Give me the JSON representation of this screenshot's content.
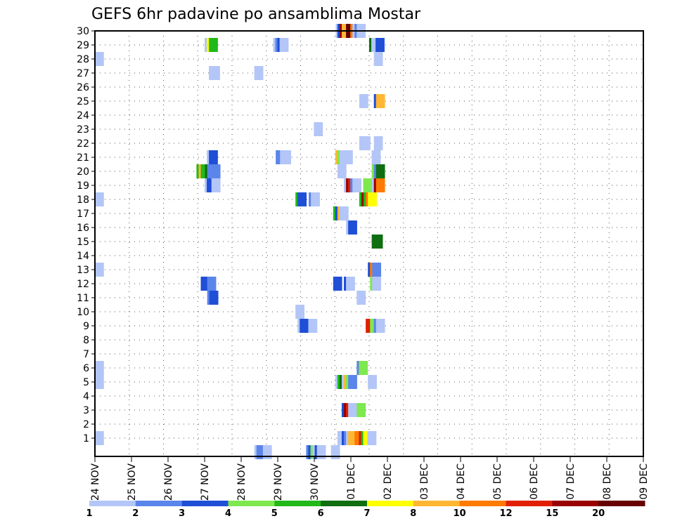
{
  "chart_data": {
    "type": "heatmap",
    "title": "GEFS 6hr padavine po ansamblima Mostar",
    "x_tick_labels": [
      "24 NOV",
      "25 NOV",
      "26 NOV",
      "27 NOV",
      "28 NOV",
      "29 NOV",
      "30 NOV",
      "01 DEC",
      "02 DEC",
      "03 DEC",
      "04 DEC",
      "05 DEC",
      "06 DEC",
      "07 DEC",
      "08 DEC",
      "09 DEC"
    ],
    "y_range": [
      0,
      30
    ],
    "y_ticks": [
      1,
      2,
      3,
      4,
      5,
      6,
      7,
      8,
      9,
      10,
      11,
      12,
      13,
      14,
      15,
      16,
      17,
      18,
      19,
      20,
      21,
      22,
      23,
      24,
      25,
      26,
      27,
      28,
      29,
      30
    ],
    "grid": true,
    "colorbar": {
      "labels": [
        "1",
        "2",
        "3",
        "4",
        "5",
        "6",
        "7",
        "8",
        "10",
        "12",
        "15",
        "20"
      ],
      "colors": [
        "#b3c6f7",
        "#5b85ea",
        "#1f4fd6",
        "#7ee84f",
        "#22b81a",
        "#0f6e12",
        "#ffff00",
        "#ffb733",
        "#ff7a00",
        "#e02000",
        "#990000",
        "#660000"
      ]
    },
    "cells": [
      {
        "m": 30,
        "s": [
          [
            28.1,
            "#b3c6f7"
          ],
          [
            28.3,
            "#1f4fd6"
          ],
          [
            28.55,
            "#990000"
          ],
          [
            28.8,
            "#ffb733"
          ],
          [
            29.05,
            "#ffb733"
          ],
          [
            29.3,
            "#660000"
          ],
          [
            29.55,
            "#660000"
          ],
          [
            29.8,
            "#ff7a00"
          ],
          [
            30.05,
            "#b3c6f7"
          ],
          [
            30.3,
            "#5b85ea"
          ],
          [
            30.55,
            "#b3c6f7"
          ]
        ]
      },
      {
        "m": 29,
        "s": [
          [
            12.8,
            "#b3c6f7"
          ],
          [
            13.05,
            "#ffff00"
          ],
          [
            13.3,
            "#22b81a"
          ],
          [
            20.8,
            "#b3c6f7"
          ],
          [
            21.05,
            "#5b85ea"
          ],
          [
            21.3,
            "#1f4fd6"
          ],
          [
            21.55,
            "#b3c6f7"
          ],
          [
            32.0,
            "#0f6e12"
          ],
          [
            32.25,
            "#b3c6f7"
          ],
          [
            32.75,
            "#1f4fd6"
          ]
        ]
      },
      {
        "m": 28,
        "s": [
          [
            0,
            "#b3c6f7"
          ],
          [
            32.55,
            "#b3c6f7"
          ]
        ]
      },
      {
        "m": 27,
        "s": [
          [
            13.3,
            "#b3c6f7"
          ],
          [
            13.55,
            "#b3c6f7"
          ],
          [
            18.6,
            "#b3c6f7"
          ]
        ]
      },
      {
        "m": 25,
        "s": [
          [
            30.85,
            "#b3c6f7"
          ],
          [
            32.55,
            "#1f4fd6"
          ],
          [
            32.8,
            "#ffb733"
          ]
        ]
      },
      {
        "m": 24,
        "s": []
      },
      {
        "m": 23,
        "s": [
          [
            25.55,
            "#b3c6f7"
          ]
        ]
      },
      {
        "m": 22,
        "s": [
          [
            30.85,
            "#b3c6f7"
          ],
          [
            31.1,
            "#b3c6f7"
          ],
          [
            32.55,
            "#b3c6f7"
          ]
        ]
      },
      {
        "m": 21,
        "s": [
          [
            13.05,
            "#b3c6f7"
          ],
          [
            13.3,
            "#1f4fd6"
          ],
          [
            21.1,
            "#5b85ea"
          ],
          [
            21.35,
            "#5b85ea"
          ],
          [
            21.6,
            "#b3c6f7"
          ],
          [
            21.85,
            "#b3c6f7"
          ],
          [
            28.05,
            "#ffb733"
          ],
          [
            28.3,
            "#7ee84f"
          ],
          [
            28.55,
            "#b3c6f7"
          ],
          [
            28.8,
            "#b3c6f7"
          ],
          [
            29.05,
            "#b3c6f7"
          ],
          [
            32.3,
            "#b3c6f7"
          ]
        ]
      },
      {
        "m": 20,
        "s": [
          [
            11.85,
            "#22b81a"
          ],
          [
            12.1,
            "#ffb733"
          ],
          [
            12.35,
            "#22b81a"
          ],
          [
            12.6,
            "#22b81a"
          ],
          [
            12.85,
            "#0f6e12"
          ],
          [
            13.1,
            "#5b85ea"
          ],
          [
            13.35,
            "#5b85ea"
          ],
          [
            13.6,
            "#5b85ea"
          ],
          [
            28.3,
            "#b3c6f7"
          ],
          [
            32.3,
            "#7ee84f"
          ],
          [
            32.55,
            "#5b85ea"
          ],
          [
            32.8,
            "#0f6e12"
          ]
        ]
      },
      {
        "m": 19,
        "s": [
          [
            12.8,
            "#b3c6f7"
          ],
          [
            13.05,
            "#1f4fd6"
          ],
          [
            13.6,
            "#b3c6f7"
          ],
          [
            29.05,
            "#b3c6f7"
          ],
          [
            29.3,
            "#990000"
          ],
          [
            29.55,
            "#e02000"
          ],
          [
            29.8,
            "#5b85ea"
          ],
          [
            30.05,
            "#b3c6f7"
          ],
          [
            31.3,
            "#7ee84f"
          ],
          [
            32.3,
            "#b3c6f7"
          ],
          [
            32.55,
            "#990000"
          ],
          [
            32.8,
            "#ff7a00"
          ]
        ]
      },
      {
        "m": 18,
        "s": [
          [
            0,
            "#b3c6f7"
          ],
          [
            23.4,
            "#22b81a"
          ],
          [
            23.65,
            "#1f4fd6"
          ],
          [
            24.95,
            "#5b85ea"
          ],
          [
            25.2,
            "#b3c6f7"
          ],
          [
            30.85,
            "#22b81a"
          ],
          [
            31.1,
            "#990000"
          ],
          [
            31.35,
            "#22b81a"
          ],
          [
            31.6,
            "#ff7a00"
          ],
          [
            31.85,
            "#ffff00"
          ]
        ]
      },
      {
        "m": 17,
        "s": [
          [
            27.8,
            "#22b81a"
          ],
          [
            28.05,
            "#1f4fd6"
          ],
          [
            28.3,
            "#ffb733"
          ],
          [
            28.55,
            "#b3c6f7"
          ]
        ]
      },
      {
        "m": 16,
        "s": [
          [
            29.3,
            "#b3c6f7"
          ],
          [
            29.55,
            "#1f4fd6"
          ]
        ]
      },
      {
        "m": 15,
        "s": [
          [
            32.3,
            "#0f6e12"
          ],
          [
            32.55,
            "#0f6e12"
          ]
        ]
      },
      {
        "m": 13,
        "s": [
          [
            0,
            "#b3c6f7"
          ],
          [
            31.85,
            "#1f4fd6"
          ],
          [
            32.1,
            "#ff7a00"
          ],
          [
            32.35,
            "#5b85ea"
          ]
        ]
      },
      {
        "m": 12,
        "s": [
          [
            12.35,
            "#1f4fd6"
          ],
          [
            12.6,
            "#1f4fd6"
          ],
          [
            12.85,
            "#1f4fd6"
          ],
          [
            13.1,
            "#5b85ea"
          ],
          [
            27.8,
            "#1f4fd6"
          ],
          [
            29.05,
            "#1f4fd6"
          ],
          [
            29.3,
            "#b3c6f7"
          ],
          [
            32.1,
            "#7ee84f"
          ],
          [
            32.35,
            "#b3c6f7"
          ]
        ]
      },
      {
        "m": 11,
        "s": [
          [
            13.1,
            "#5b85ea"
          ],
          [
            13.35,
            "#1f4fd6"
          ],
          [
            30.55,
            "#b3c6f7"
          ]
        ]
      },
      {
        "m": 10,
        "s": [
          [
            23.4,
            "#b3c6f7"
          ]
        ]
      },
      {
        "m": 9,
        "s": [
          [
            23.65,
            "#b3c6f7"
          ],
          [
            23.9,
            "#1f4fd6"
          ],
          [
            24.15,
            "#1f4fd6"
          ],
          [
            24.4,
            "#1f4fd6"
          ],
          [
            24.65,
            "#1f4fd6"
          ],
          [
            24.9,
            "#b3c6f7"
          ],
          [
            31.6,
            "#e02000"
          ],
          [
            31.85,
            "#e02000"
          ],
          [
            32.1,
            "#7ee84f"
          ],
          [
            32.55,
            "#5b85ea"
          ],
          [
            32.8,
            "#b3c6f7"
          ]
        ]
      },
      {
        "m": 6,
        "s": [
          [
            0,
            "#b3c6f7"
          ],
          [
            30.55,
            "#5b85ea"
          ],
          [
            30.8,
            "#7ee84f"
          ]
        ]
      },
      {
        "m": 5,
        "s": [
          [
            0,
            "#b3c6f7"
          ],
          [
            28.05,
            "#b3c6f7"
          ],
          [
            28.3,
            "#22b81a"
          ],
          [
            28.55,
            "#0f6e12"
          ],
          [
            28.8,
            "#b3c6f7"
          ],
          [
            29.05,
            "#ffb733"
          ],
          [
            29.3,
            "#7ee84f"
          ],
          [
            29.55,
            "#5b85ea"
          ],
          [
            31.85,
            "#b3c6f7"
          ]
        ]
      },
      {
        "m": 3,
        "s": [
          [
            28.8,
            "#1f4fd6"
          ],
          [
            29.05,
            "#990000"
          ],
          [
            29.3,
            "#e02000"
          ],
          [
            29.55,
            "#b3c6f7"
          ],
          [
            30.55,
            "#7ee84f"
          ]
        ]
      },
      {
        "m": 1,
        "s": [
          [
            0,
            "#b3c6f7"
          ],
          [
            28.3,
            "#b3c6f7"
          ],
          [
            28.55,
            "#b3c6f7"
          ],
          [
            28.8,
            "#1f4fd6"
          ],
          [
            29.05,
            "#5b85ea"
          ],
          [
            29.3,
            "#b3c6f7"
          ],
          [
            29.55,
            "#ffb733"
          ],
          [
            29.8,
            "#ffb733"
          ],
          [
            30.05,
            "#ffb733"
          ],
          [
            30.3,
            "#ff7a00"
          ],
          [
            30.55,
            "#ff7a00"
          ],
          [
            30.8,
            "#e02000"
          ],
          [
            31.05,
            "#22b81a"
          ],
          [
            31.3,
            "#ffff00"
          ],
          [
            31.55,
            "#ffff00"
          ],
          [
            31.8,
            "#b3c6f7"
          ]
        ]
      },
      {
        "m": 0,
        "s": [
          [
            18.6,
            "#b3c6f7"
          ],
          [
            18.85,
            "#5b85ea"
          ],
          [
            19.1,
            "#5b85ea"
          ],
          [
            19.35,
            "#5b85ea"
          ],
          [
            19.6,
            "#b3c6f7"
          ],
          [
            24.65,
            "#5b85ea"
          ],
          [
            24.9,
            "#1f4fd6"
          ],
          [
            25.15,
            "#7ee84f"
          ],
          [
            25.4,
            "#b3c6f7"
          ],
          [
            25.65,
            "#1f4fd6"
          ],
          [
            25.9,
            "#b3c6f7"
          ],
          [
            27.55,
            "#b3c6f7"
          ]
        ]
      }
    ]
  }
}
